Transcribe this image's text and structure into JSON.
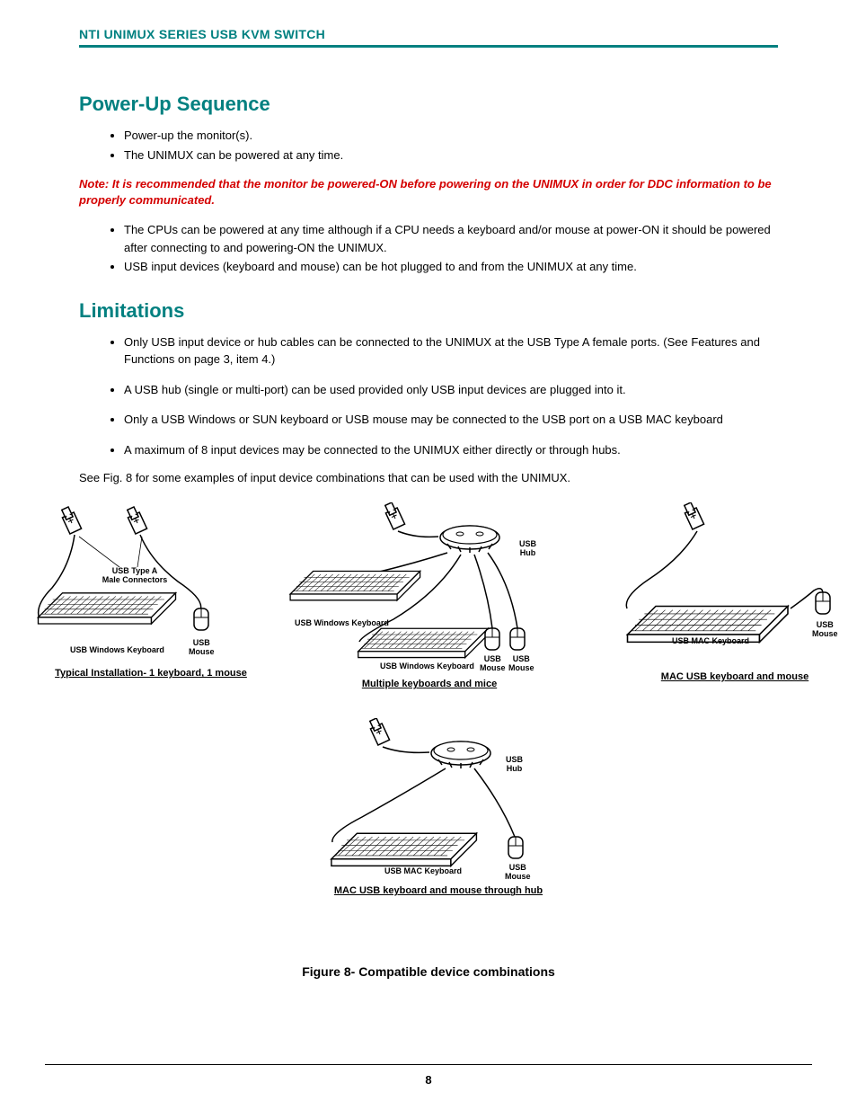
{
  "colors": {
    "teal": "#008080",
    "red": "#d40000",
    "black": "#000000",
    "white": "#ffffff"
  },
  "header": {
    "title": "NTI UNIMUX SERIES USB KVM SWITCH"
  },
  "section1": {
    "heading": "Power-Up Sequence",
    "bullets_a": [
      "Power-up the monitor(s).",
      "The UNIMUX can be powered at any time."
    ],
    "note": "Note:  It is recommended that the monitor be powered-ON before powering on the UNIMUX in order for DDC information to be properly communicated.",
    "bullets_b": [
      "The CPUs can be powered at any time although if a CPU needs a keyboard and/or mouse at power-ON it should be powered after connecting to and powering-ON the UNIMUX.",
      "USB input devices (keyboard and mouse) can be hot plugged to and from the UNIMUX at any time."
    ]
  },
  "section2": {
    "heading": "Limitations",
    "bullets": [
      "Only USB input device or hub cables can be connected to the UNIMUX at the USB Type A female ports.  (See Features and Functions on page 3, item 4.)",
      "A USB hub (single or multi-port) can be used provided only USB input devices are plugged into it.",
      "Only a USB Windows or SUN keyboard or USB mouse may be connected to the USB port on a USB MAC keyboard",
      "A maximum of 8 input devices may be connected to the UNIMUX either directly or through hubs."
    ],
    "post_text": "See Fig. 8 for some examples of input device combinations that can be used with the UNIMUX."
  },
  "figures": {
    "fig1": {
      "caption": "Typical Installation- 1 keyboard,  1 mouse",
      "lbl_connectors": "USB Type A\nMale Connectors",
      "lbl_keyboard": "USB Windows Keyboard",
      "lbl_mouse": "USB\nMouse"
    },
    "fig2": {
      "caption": "Multiple keyboards and mice",
      "lbl_hub": "USB\nHub",
      "lbl_kb1": "USB Windows Keyboard",
      "lbl_kb2": "USB Windows Keyboard",
      "lbl_m1": "USB\nMouse",
      "lbl_m2": "USB\nMouse"
    },
    "fig3": {
      "caption": " MAC USB keyboard and mouse",
      "lbl_keyboard": "USB MAC Keyboard",
      "lbl_mouse": "USB\nMouse"
    },
    "fig4": {
      "caption": "MAC USB keyboard and mouse through hub",
      "lbl_hub": "USB\nHub",
      "lbl_keyboard": "USB MAC Keyboard",
      "lbl_mouse": "USB\nMouse"
    },
    "main_caption": "Figure 8- Compatible device combinations"
  },
  "page_number": "8"
}
